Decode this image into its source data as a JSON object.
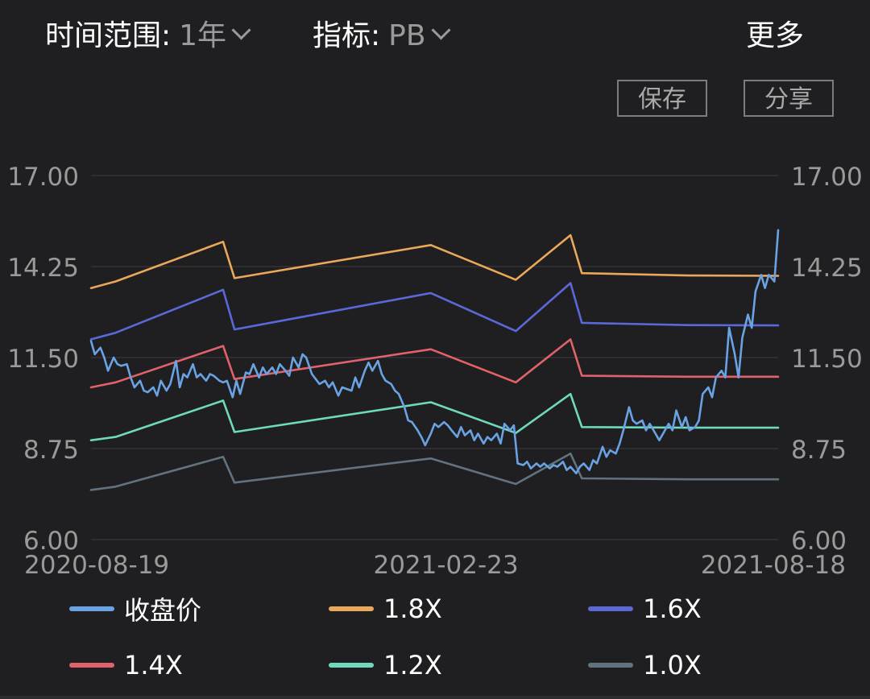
{
  "toolbar": {
    "range_label": "时间范围:",
    "range_value": "1年",
    "metric_label": "指标:",
    "metric_value": "PB",
    "more_label": "更多",
    "save_label": "保存",
    "share_label": "分享"
  },
  "chart_data": {
    "type": "line",
    "x_ticks": [
      "2020-08-19",
      "2021-02-23",
      "2021-08-18"
    ],
    "y_ticks": [
      "17.00",
      "14.25",
      "11.50",
      "8.75",
      "6.00"
    ],
    "ylim": [
      6.0,
      17.0
    ],
    "xlim": [
      "2020-08-19",
      "2021-08-18"
    ],
    "grid": true,
    "legend_position": "bottom",
    "series": [
      {
        "name": "1.8X",
        "color": "#e9a85a",
        "points": [
          [
            "2020-08-19",
            13.6
          ],
          [
            "2020-09-01",
            13.8
          ],
          [
            "2020-10-28",
            15.0
          ],
          [
            "2020-11-03",
            13.9
          ],
          [
            "2021-02-15",
            14.9
          ],
          [
            "2021-04-01",
            13.85
          ],
          [
            "2021-04-30",
            15.2
          ],
          [
            "2021-05-06",
            14.05
          ],
          [
            "2021-07-01",
            13.98
          ],
          [
            "2021-08-18",
            13.97
          ]
        ]
      },
      {
        "name": "1.6X",
        "color": "#5b68d8",
        "points": [
          [
            "2020-08-19",
            12.05
          ],
          [
            "2020-09-01",
            12.25
          ],
          [
            "2020-10-28",
            13.55
          ],
          [
            "2020-11-03",
            12.35
          ],
          [
            "2021-02-15",
            13.45
          ],
          [
            "2021-04-01",
            12.3
          ],
          [
            "2021-04-30",
            13.75
          ],
          [
            "2021-05-06",
            12.55
          ],
          [
            "2021-07-01",
            12.48
          ],
          [
            "2021-08-18",
            12.47
          ]
        ]
      },
      {
        "name": "1.4X",
        "color": "#e0626a",
        "points": [
          [
            "2020-08-19",
            10.6
          ],
          [
            "2020-09-01",
            10.75
          ],
          [
            "2020-10-28",
            11.85
          ],
          [
            "2020-11-03",
            10.85
          ],
          [
            "2021-02-15",
            11.75
          ],
          [
            "2021-04-01",
            10.75
          ],
          [
            "2021-04-30",
            12.05
          ],
          [
            "2021-05-06",
            10.95
          ],
          [
            "2021-07-01",
            10.92
          ],
          [
            "2021-08-18",
            10.92
          ]
        ]
      },
      {
        "name": "1.2X",
        "color": "#6fd9bd",
        "points": [
          [
            "2020-08-19",
            9.0
          ],
          [
            "2020-09-01",
            9.1
          ],
          [
            "2020-10-28",
            10.2
          ],
          [
            "2020-11-03",
            9.25
          ],
          [
            "2021-02-15",
            10.15
          ],
          [
            "2021-04-01",
            9.22
          ],
          [
            "2021-04-30",
            10.4
          ],
          [
            "2021-05-06",
            9.4
          ],
          [
            "2021-07-01",
            9.38
          ],
          [
            "2021-08-18",
            9.38
          ]
        ]
      },
      {
        "name": "1.0X",
        "color": "#61737e",
        "points": [
          [
            "2020-08-19",
            7.5
          ],
          [
            "2020-09-01",
            7.6
          ],
          [
            "2020-10-28",
            8.5
          ],
          [
            "2020-11-03",
            7.72
          ],
          [
            "2021-02-15",
            8.45
          ],
          [
            "2021-04-01",
            7.68
          ],
          [
            "2021-04-30",
            8.6
          ],
          [
            "2021-05-06",
            7.85
          ],
          [
            "2021-07-01",
            7.82
          ],
          [
            "2021-08-18",
            7.82
          ]
        ]
      },
      {
        "name": "收盘价",
        "color": "#6aa3e3",
        "points": [
          [
            "2020-08-19",
            12.0
          ],
          [
            "2020-08-21",
            11.6
          ],
          [
            "2020-08-24",
            11.8
          ],
          [
            "2020-08-26",
            11.5
          ],
          [
            "2020-08-28",
            11.1
          ],
          [
            "2020-08-31",
            11.5
          ],
          [
            "2020-09-02",
            11.3
          ],
          [
            "2020-09-04",
            11.25
          ],
          [
            "2020-09-07",
            11.3
          ],
          [
            "2020-09-09",
            10.9
          ],
          [
            "2020-09-11",
            10.6
          ],
          [
            "2020-09-14",
            10.8
          ],
          [
            "2020-09-16",
            10.5
          ],
          [
            "2020-09-18",
            10.45
          ],
          [
            "2020-09-21",
            10.6
          ],
          [
            "2020-09-23",
            10.35
          ],
          [
            "2020-09-25",
            10.8
          ],
          [
            "2020-09-28",
            10.5
          ],
          [
            "2020-09-30",
            10.7
          ],
          [
            "2020-10-03",
            11.4
          ],
          [
            "2020-10-05",
            10.6
          ],
          [
            "2020-10-07",
            11.0
          ],
          [
            "2020-10-09",
            10.9
          ],
          [
            "2020-10-12",
            11.3
          ],
          [
            "2020-10-14",
            10.9
          ],
          [
            "2020-10-16",
            11.0
          ],
          [
            "2020-10-19",
            10.8
          ],
          [
            "2020-10-21",
            11.0
          ],
          [
            "2020-10-23",
            10.95
          ],
          [
            "2020-10-26",
            10.8
          ],
          [
            "2020-10-28",
            10.75
          ],
          [
            "2020-10-30",
            10.8
          ],
          [
            "2020-11-02",
            10.3
          ],
          [
            "2020-11-04",
            10.8
          ],
          [
            "2020-11-06",
            10.4
          ],
          [
            "2020-11-09",
            11.05
          ],
          [
            "2020-11-11",
            11.0
          ],
          [
            "2020-11-13",
            11.3
          ],
          [
            "2020-11-16",
            10.9
          ],
          [
            "2020-11-18",
            11.2
          ],
          [
            "2020-11-20",
            11.0
          ],
          [
            "2020-11-23",
            11.2
          ],
          [
            "2020-11-25",
            11.0
          ],
          [
            "2020-11-27",
            11.3
          ],
          [
            "2020-11-30",
            11.1
          ],
          [
            "2020-12-02",
            10.95
          ],
          [
            "2020-12-04",
            11.5
          ],
          [
            "2020-12-07",
            11.2
          ],
          [
            "2020-12-09",
            11.6
          ],
          [
            "2020-12-11",
            11.5
          ],
          [
            "2020-12-14",
            11.0
          ],
          [
            "2020-12-16",
            10.85
          ],
          [
            "2020-12-18",
            10.7
          ],
          [
            "2020-12-21",
            10.8
          ],
          [
            "2020-12-23",
            10.6
          ],
          [
            "2020-12-25",
            10.75
          ],
          [
            "2020-12-28",
            10.35
          ],
          [
            "2020-12-30",
            10.6
          ],
          [
            "2021-01-04",
            10.5
          ],
          [
            "2021-01-06",
            10.9
          ],
          [
            "2021-01-08",
            10.6
          ],
          [
            "2021-01-11",
            11.1
          ],
          [
            "2021-01-13",
            11.35
          ],
          [
            "2021-01-15",
            11.1
          ],
          [
            "2021-01-18",
            11.4
          ],
          [
            "2021-01-20",
            11.0
          ],
          [
            "2021-01-22",
            10.8
          ],
          [
            "2021-01-25",
            10.7
          ],
          [
            "2021-01-27",
            10.5
          ],
          [
            "2021-01-29",
            10.4
          ],
          [
            "2021-02-01",
            10.0
          ],
          [
            "2021-02-03",
            9.6
          ],
          [
            "2021-02-05",
            9.55
          ],
          [
            "2021-02-08",
            9.3
          ],
          [
            "2021-02-10",
            9.1
          ],
          [
            "2021-02-12",
            8.85
          ],
          [
            "2021-02-15",
            9.2
          ],
          [
            "2021-02-17",
            9.5
          ],
          [
            "2021-02-19",
            9.4
          ],
          [
            "2021-02-22",
            9.55
          ],
          [
            "2021-02-24",
            9.45
          ],
          [
            "2021-02-26",
            9.3
          ],
          [
            "2021-03-01",
            9.1
          ],
          [
            "2021-03-03",
            9.4
          ],
          [
            "2021-03-05",
            9.15
          ],
          [
            "2021-03-08",
            9.3
          ],
          [
            "2021-03-10",
            9.0
          ],
          [
            "2021-03-12",
            9.2
          ],
          [
            "2021-03-15",
            8.9
          ],
          [
            "2021-03-17",
            9.1
          ],
          [
            "2021-03-19",
            9.0
          ],
          [
            "2021-03-22",
            9.2
          ],
          [
            "2021-03-24",
            8.9
          ],
          [
            "2021-03-26",
            9.5
          ],
          [
            "2021-03-29",
            9.3
          ],
          [
            "2021-03-31",
            9.45
          ],
          [
            "2021-04-02",
            8.3
          ],
          [
            "2021-04-05",
            8.25
          ],
          [
            "2021-04-07",
            8.35
          ],
          [
            "2021-04-09",
            8.15
          ],
          [
            "2021-04-12",
            8.3
          ],
          [
            "2021-04-14",
            8.2
          ],
          [
            "2021-04-16",
            8.3
          ],
          [
            "2021-04-19",
            8.15
          ],
          [
            "2021-04-21",
            8.25
          ],
          [
            "2021-04-23",
            8.2
          ],
          [
            "2021-04-26",
            8.35
          ],
          [
            "2021-04-28",
            8.1
          ],
          [
            "2021-04-30",
            8.2
          ],
          [
            "2021-05-03",
            8.0
          ],
          [
            "2021-05-05",
            8.2
          ],
          [
            "2021-05-07",
            8.3
          ],
          [
            "2021-05-10",
            8.1
          ],
          [
            "2021-05-12",
            8.4
          ],
          [
            "2021-05-14",
            8.3
          ],
          [
            "2021-05-17",
            8.8
          ],
          [
            "2021-05-19",
            8.5
          ],
          [
            "2021-05-21",
            8.7
          ],
          [
            "2021-05-24",
            8.6
          ],
          [
            "2021-05-26",
            8.9
          ],
          [
            "2021-05-28",
            9.3
          ],
          [
            "2021-05-31",
            10.0
          ],
          [
            "2021-06-02",
            9.6
          ],
          [
            "2021-06-04",
            9.5
          ],
          [
            "2021-06-07",
            9.6
          ],
          [
            "2021-06-09",
            9.3
          ],
          [
            "2021-06-11",
            9.5
          ],
          [
            "2021-06-14",
            9.2
          ],
          [
            "2021-06-16",
            9.0
          ],
          [
            "2021-06-18",
            9.2
          ],
          [
            "2021-06-21",
            9.5
          ],
          [
            "2021-06-23",
            9.3
          ],
          [
            "2021-06-25",
            9.9
          ],
          [
            "2021-06-28",
            9.4
          ],
          [
            "2021-06-30",
            9.7
          ],
          [
            "2021-07-02",
            9.3
          ],
          [
            "2021-07-05",
            9.4
          ],
          [
            "2021-07-07",
            9.6
          ],
          [
            "2021-07-09",
            10.4
          ],
          [
            "2021-07-12",
            10.6
          ],
          [
            "2021-07-14",
            10.3
          ],
          [
            "2021-07-16",
            10.9
          ],
          [
            "2021-07-19",
            11.1
          ],
          [
            "2021-07-21",
            10.9
          ],
          [
            "2021-07-23",
            12.4
          ],
          [
            "2021-07-26",
            11.6
          ],
          [
            "2021-07-28",
            10.9
          ],
          [
            "2021-07-30",
            12.1
          ],
          [
            "2021-08-02",
            12.8
          ],
          [
            "2021-08-04",
            12.4
          ],
          [
            "2021-08-06",
            13.5
          ],
          [
            "2021-08-09",
            14.0
          ],
          [
            "2021-08-11",
            13.6
          ],
          [
            "2021-08-13",
            14.0
          ],
          [
            "2021-08-16",
            13.8
          ],
          [
            "2021-08-18",
            15.35
          ]
        ]
      }
    ]
  }
}
